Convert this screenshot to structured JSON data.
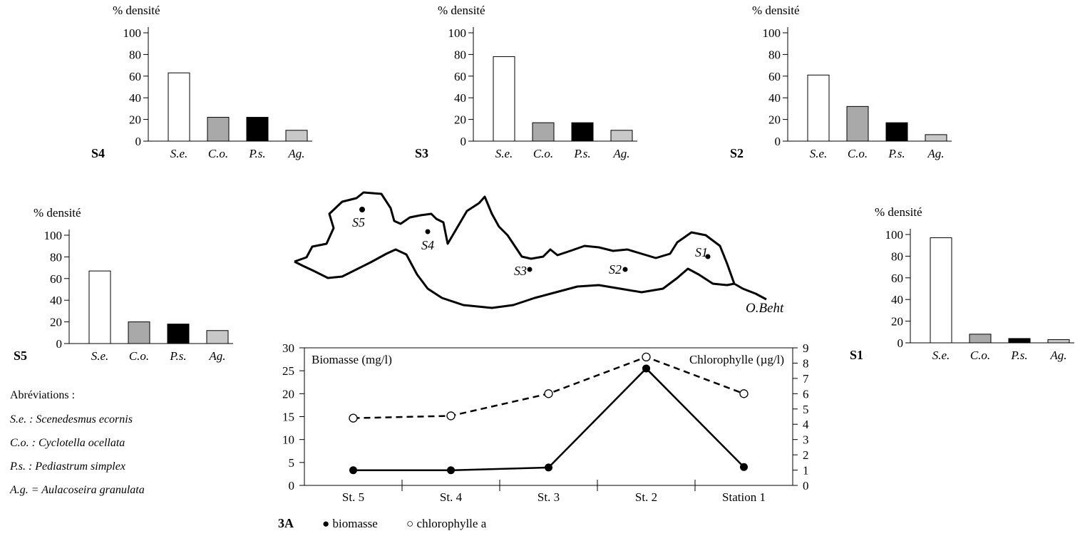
{
  "abbreviations": {
    "title": "Abréviations :",
    "items": [
      "S.e. : Scenedesmus ecornis",
      "C.o. : Cyclotella ocellata",
      "P.s. : Pediastrum simplex",
      "A.g. = Aulacoseira granulata"
    ]
  },
  "map": {
    "river_label": "O.Beht",
    "stations": [
      "S5",
      "S4",
      "S3",
      "S2",
      "S1"
    ]
  },
  "colors": {
    "se": "#ffffff",
    "co": "#a9a9a9",
    "ps": "#000000",
    "ag": "#c8c8c8",
    "line": "#000000"
  },
  "chart_data": [
    {
      "id": "S4",
      "type": "bar",
      "station_label": "S4",
      "ylabel": "% densité",
      "categories": [
        "S.e.",
        "C.o.",
        "P.s.",
        "Ag."
      ],
      "values": [
        63,
        22,
        22,
        10
      ],
      "yticks": [
        0,
        20,
        40,
        60,
        80,
        100
      ],
      "ylim": [
        0,
        100
      ]
    },
    {
      "id": "S3",
      "type": "bar",
      "station_label": "S3",
      "ylabel": "% densité",
      "categories": [
        "S.e.",
        "C.o.",
        "P.s.",
        "Ag."
      ],
      "values": [
        78,
        17,
        17,
        10
      ],
      "yticks": [
        0,
        20,
        40,
        60,
        80,
        100
      ],
      "ylim": [
        0,
        100
      ]
    },
    {
      "id": "S2",
      "type": "bar",
      "station_label": "S2",
      "ylabel": "% densité",
      "categories": [
        "S.e.",
        "C.o.",
        "P.s.",
        "Ag."
      ],
      "values": [
        61,
        32,
        17,
        6
      ],
      "yticks": [
        0,
        20,
        40,
        60,
        80,
        100
      ],
      "ylim": [
        0,
        100
      ]
    },
    {
      "id": "S5",
      "type": "bar",
      "station_label": "S5",
      "ylabel": "% densité",
      "categories": [
        "S.e.",
        "C.o.",
        "P.s.",
        "Ag."
      ],
      "values": [
        67,
        20,
        18,
        12
      ],
      "yticks": [
        0,
        20,
        40,
        60,
        80,
        100
      ],
      "ylim": [
        0,
        100
      ]
    },
    {
      "id": "S1",
      "type": "bar",
      "station_label": "S1",
      "ylabel": "% densité",
      "categories": [
        "S.e.",
        "C.o.",
        "P.s.",
        "Ag."
      ],
      "values": [
        97,
        8,
        4,
        3
      ],
      "yticks": [
        0,
        20,
        40,
        60,
        80,
        100
      ],
      "ylim": [
        0,
        100
      ]
    },
    {
      "id": "3A",
      "type": "line",
      "label": "3A",
      "categories": [
        "St. 5",
        "St. 4",
        "St. 3",
        "St. 2",
        "Station 1"
      ],
      "y_left": {
        "label": "Biomasse (mg/l)",
        "ylim": [
          0,
          30
        ],
        "ticks": [
          0,
          5,
          10,
          15,
          20,
          25,
          30
        ]
      },
      "y_right": {
        "label": "Chlorophylle (µg/l)",
        "ylim": [
          0,
          9
        ],
        "ticks": [
          0,
          1,
          2,
          3,
          4,
          5,
          6,
          7,
          8,
          9
        ]
      },
      "series": [
        {
          "name": "biomasse",
          "axis": "left",
          "marker": "●",
          "values": [
            3.3,
            3.3,
            3.9,
            25.5,
            4.0
          ]
        },
        {
          "name": "chlorophylle a",
          "axis": "right",
          "marker": "○",
          "values": [
            4.4,
            4.55,
            6.0,
            8.4,
            6.0
          ]
        }
      ]
    }
  ]
}
